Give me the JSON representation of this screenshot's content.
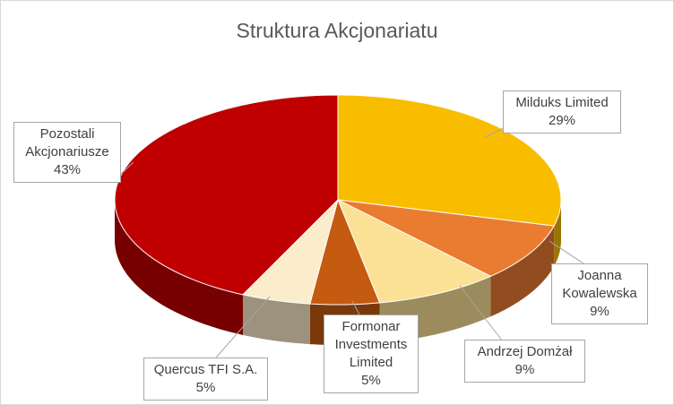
{
  "chart_data": {
    "type": "pie3d",
    "title": "Struktura Akcjonariatu",
    "categories": [
      "Milduks Limited",
      "Joanna Kowalewska",
      "Andrzej Domżał",
      "Formonar Investments Limited",
      "Quercus TFI S.A.",
      "Pozostali Akcjonariusze"
    ],
    "values": [
      29,
      9,
      9,
      5,
      5,
      43
    ],
    "value_labels": [
      "29%",
      "9%",
      "9%",
      "5%",
      "5%",
      "43%"
    ],
    "colors": [
      "#f9bd00",
      "#ea7c32",
      "#fbe196",
      "#c55a11",
      "#fbeccb",
      "#c00000"
    ]
  }
}
